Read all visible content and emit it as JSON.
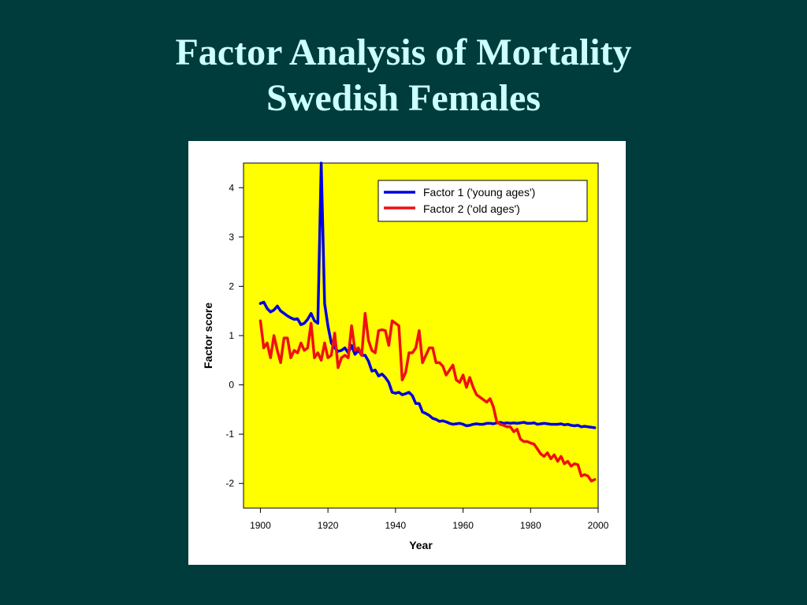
{
  "slide": {
    "title_line1": "Factor Analysis of Mortality",
    "title_line2": "Swedish Females"
  },
  "colors": {
    "background": "#003c3c",
    "title": "#ccffff",
    "plot_area": "#ffff00",
    "factor1": "#0000dd",
    "factor2": "#ee1111"
  },
  "chart_data": {
    "type": "line",
    "title": "",
    "xlabel": "Year",
    "ylabel": "Factor score",
    "xlim": [
      1895,
      2000
    ],
    "ylim": [
      -2.5,
      4.5
    ],
    "xticks": [
      1900,
      1920,
      1940,
      1960,
      1980,
      2000
    ],
    "yticks": [
      -2,
      -1,
      0,
      1,
      2,
      3,
      4
    ],
    "grid": false,
    "legend_position": "top-right",
    "series": [
      {
        "name": "Factor 1 ('young ages')",
        "color": "#0000dd",
        "x": [
          1900,
          1901,
          1902,
          1903,
          1904,
          1905,
          1906,
          1907,
          1908,
          1909,
          1910,
          1911,
          1912,
          1913,
          1914,
          1915,
          1916,
          1917,
          1918,
          1919,
          1920,
          1921,
          1922,
          1923,
          1924,
          1925,
          1926,
          1927,
          1928,
          1929,
          1930,
          1931,
          1932,
          1933,
          1934,
          1935,
          1936,
          1937,
          1938,
          1939,
          1940,
          1941,
          1942,
          1943,
          1944,
          1945,
          1946,
          1947,
          1948,
          1949,
          1950,
          1951,
          1952,
          1953,
          1954,
          1955,
          1956,
          1957,
          1958,
          1959,
          1960,
          1961,
          1962,
          1963,
          1964,
          1965,
          1966,
          1967,
          1968,
          1969,
          1970,
          1971,
          1972,
          1973,
          1974,
          1975,
          1976,
          1977,
          1978,
          1979,
          1980,
          1981,
          1982,
          1983,
          1984,
          1985,
          1986,
          1987,
          1988,
          1989,
          1990,
          1991,
          1992,
          1993,
          1994,
          1995,
          1996,
          1997,
          1998,
          1999
        ],
        "values": [
          1.65,
          1.68,
          1.55,
          1.48,
          1.52,
          1.6,
          1.5,
          1.45,
          1.4,
          1.36,
          1.33,
          1.34,
          1.22,
          1.25,
          1.33,
          1.45,
          1.3,
          1.25,
          4.5,
          1.65,
          1.2,
          0.85,
          0.75,
          0.68,
          0.7,
          0.75,
          0.65,
          0.8,
          0.62,
          0.7,
          0.6,
          0.6,
          0.48,
          0.28,
          0.3,
          0.18,
          0.22,
          0.15,
          0.05,
          -0.15,
          -0.17,
          -0.15,
          -0.2,
          -0.18,
          -0.15,
          -0.22,
          -0.38,
          -0.38,
          -0.55,
          -0.58,
          -0.62,
          -0.68,
          -0.7,
          -0.74,
          -0.73,
          -0.75,
          -0.78,
          -0.8,
          -0.79,
          -0.78,
          -0.8,
          -0.83,
          -0.82,
          -0.8,
          -0.79,
          -0.8,
          -0.8,
          -0.78,
          -0.78,
          -0.79,
          -0.77,
          -0.76,
          -0.78,
          -0.77,
          -0.78,
          -0.77,
          -0.78,
          -0.77,
          -0.76,
          -0.78,
          -0.78,
          -0.77,
          -0.8,
          -0.79,
          -0.78,
          -0.79,
          -0.8,
          -0.8,
          -0.8,
          -0.79,
          -0.81,
          -0.8,
          -0.82,
          -0.83,
          -0.82,
          -0.85,
          -0.84,
          -0.85,
          -0.86,
          -0.87
        ]
      },
      {
        "name": "Factor 2 ('old ages')",
        "color": "#ee1111",
        "x": [
          1900,
          1901,
          1902,
          1903,
          1904,
          1905,
          1906,
          1907,
          1908,
          1909,
          1910,
          1911,
          1912,
          1913,
          1914,
          1915,
          1916,
          1917,
          1918,
          1919,
          1920,
          1921,
          1922,
          1923,
          1924,
          1925,
          1926,
          1927,
          1928,
          1929,
          1930,
          1931,
          1932,
          1933,
          1934,
          1935,
          1936,
          1937,
          1938,
          1939,
          1940,
          1941,
          1942,
          1943,
          1944,
          1945,
          1946,
          1947,
          1948,
          1949,
          1950,
          1951,
          1952,
          1953,
          1954,
          1955,
          1956,
          1957,
          1958,
          1959,
          1960,
          1961,
          1962,
          1963,
          1964,
          1965,
          1966,
          1967,
          1968,
          1969,
          1970,
          1971,
          1972,
          1973,
          1974,
          1975,
          1976,
          1977,
          1978,
          1979,
          1980,
          1981,
          1982,
          1983,
          1984,
          1985,
          1986,
          1987,
          1988,
          1989,
          1990,
          1991,
          1992,
          1993,
          1994,
          1995,
          1996,
          1997,
          1998,
          1999
        ],
        "values": [
          1.3,
          0.75,
          0.85,
          0.55,
          1.0,
          0.7,
          0.45,
          0.95,
          0.95,
          0.55,
          0.7,
          0.65,
          0.85,
          0.7,
          0.75,
          1.25,
          0.55,
          0.65,
          0.5,
          0.85,
          0.55,
          0.6,
          1.05,
          0.35,
          0.55,
          0.6,
          0.55,
          1.2,
          0.7,
          0.75,
          0.6,
          1.45,
          0.9,
          0.7,
          0.65,
          1.1,
          1.12,
          1.1,
          0.8,
          1.3,
          1.25,
          1.2,
          0.1,
          0.25,
          0.65,
          0.65,
          0.75,
          1.1,
          0.45,
          0.6,
          0.75,
          0.75,
          0.45,
          0.45,
          0.38,
          0.2,
          0.3,
          0.4,
          0.1,
          0.05,
          0.2,
          -0.05,
          0.15,
          -0.05,
          -0.2,
          -0.25,
          -0.3,
          -0.35,
          -0.28,
          -0.45,
          -0.75,
          -0.8,
          -0.82,
          -0.85,
          -0.85,
          -0.95,
          -0.9,
          -1.1,
          -1.15,
          -1.15,
          -1.18,
          -1.2,
          -1.3,
          -1.4,
          -1.45,
          -1.38,
          -1.5,
          -1.42,
          -1.55,
          -1.45,
          -1.6,
          -1.55,
          -1.65,
          -1.6,
          -1.62,
          -1.85,
          -1.82,
          -1.85,
          -1.95,
          -1.92
        ]
      }
    ]
  }
}
